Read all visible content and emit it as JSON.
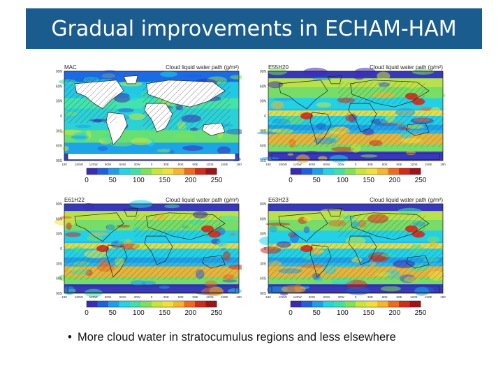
{
  "slide": {
    "title": "Gradual improvements in ECHAM-HAM",
    "bullet": "More cloud water in stratocumulus regions and less elsewhere"
  },
  "colors": {
    "title_bg": "#1b5c8e",
    "colorbar": [
      "#3a2bb5",
      "#1f5fe0",
      "#1c9fe8",
      "#21d4e6",
      "#3ee0a8",
      "#7fe05a",
      "#c8e63a",
      "#f2e03a",
      "#f8b52a",
      "#f06a1e",
      "#d42a1a",
      "#a0121a"
    ]
  },
  "panels": [
    {
      "id": "MAC",
      "label": "MAC",
      "title": "Cloud liquid water path (g/m²)",
      "mode": "mac"
    },
    {
      "id": "E55H20",
      "label": "E55H20",
      "title": "Cloud liquid water path (g/m²)",
      "mode": "full"
    },
    {
      "id": "E61H22",
      "label": "E61H22",
      "title": "Cloud liquid water path (g/m²)",
      "mode": "full2"
    },
    {
      "id": "E63H23",
      "label": "E63H23",
      "title": "Cloud liquid water path (g/m²)",
      "mode": "full3"
    }
  ],
  "axes": {
    "lat_ticks_top": [
      "90N",
      "60N",
      "30N",
      "0",
      "30S",
      "60S",
      "90S"
    ],
    "lat_ticks_bottom": [
      "90N",
      "60N",
      "30N",
      "0",
      "30S",
      "60S",
      "90S"
    ],
    "lon_ticks": [
      "180",
      "150W",
      "120W",
      "90W",
      "60W",
      "30W",
      "0",
      "30E",
      "60E",
      "90E",
      "120E",
      "150E",
      "180"
    ],
    "colorbar_ticks": [
      "0",
      "50",
      "100",
      "150",
      "200",
      "250"
    ]
  }
}
